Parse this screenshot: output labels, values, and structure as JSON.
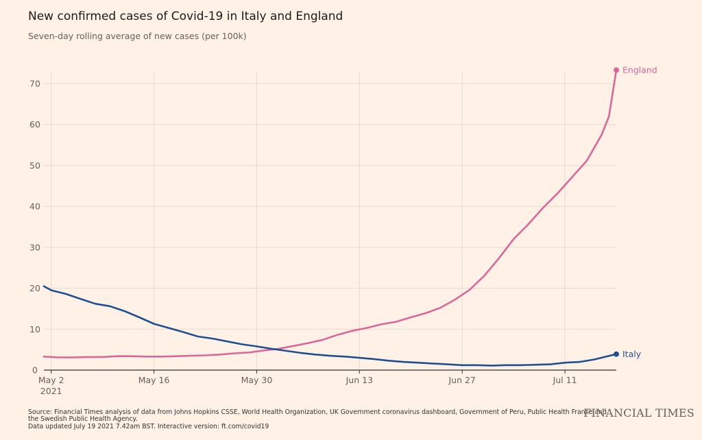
{
  "header": {
    "title": "New confirmed cases of Covid-19 in Italy and England",
    "subtitle": "Seven-day rolling average of new cases (per 100k)"
  },
  "footer": {
    "source_line1": "Source: Financial Times analysis of data from Johns Hopkins CSSE, World Health Organization, UK Government coronavirus dashboard, Government of Peru, Public Health France and",
    "source_line2": "the Swedish Public Health Agency.",
    "updated_line": "Data updated July 19 2021 7.42am BST. Interactive version: ft.com/covid19"
  },
  "brand": {
    "logo_text": "FINANCIAL TIMES"
  },
  "colors": {
    "background": "#fff1e5",
    "england": "#d9679a",
    "italy": "#1f4f8f",
    "grid": "#e6d9ce"
  },
  "chart_data": {
    "type": "line",
    "title": "New confirmed cases of Covid-19 in Italy and England",
    "subtitle": "Seven-day rolling average of new cases (per 100k)",
    "xlabel": "",
    "ylabel": "",
    "x_range": [
      "2021-05-01",
      "2021-07-18"
    ],
    "ylim": [
      0,
      73
    ],
    "y_ticks": [
      0,
      10,
      20,
      30,
      40,
      50,
      60,
      70
    ],
    "x_ticks": [
      {
        "date": "2021-05-02",
        "label": "May 2",
        "sublabel": "2021"
      },
      {
        "date": "2021-05-16",
        "label": "May 16"
      },
      {
        "date": "2021-05-30",
        "label": "May 30"
      },
      {
        "date": "2021-06-13",
        "label": "Jun 13"
      },
      {
        "date": "2021-06-27",
        "label": "Jun 27"
      },
      {
        "date": "2021-07-11",
        "label": "Jul 11"
      }
    ],
    "grid": true,
    "legend": "direct labels at line ends",
    "series": [
      {
        "name": "England",
        "color": "#d9679a",
        "points": [
          [
            "2021-05-01",
            3.3
          ],
          [
            "2021-05-03",
            3.1
          ],
          [
            "2021-05-05",
            3.1
          ],
          [
            "2021-05-07",
            3.2
          ],
          [
            "2021-05-09",
            3.2
          ],
          [
            "2021-05-11",
            3.4
          ],
          [
            "2021-05-13",
            3.4
          ],
          [
            "2021-05-15",
            3.3
          ],
          [
            "2021-05-17",
            3.3
          ],
          [
            "2021-05-19",
            3.4
          ],
          [
            "2021-05-21",
            3.5
          ],
          [
            "2021-05-23",
            3.6
          ],
          [
            "2021-05-25",
            3.8
          ],
          [
            "2021-05-27",
            4.1
          ],
          [
            "2021-05-29",
            4.3
          ],
          [
            "2021-05-31",
            4.8
          ],
          [
            "2021-06-02",
            5.2
          ],
          [
            "2021-06-04",
            5.9
          ],
          [
            "2021-06-06",
            6.6
          ],
          [
            "2021-06-08",
            7.4
          ],
          [
            "2021-06-10",
            8.6
          ],
          [
            "2021-06-12",
            9.6
          ],
          [
            "2021-06-14",
            10.3
          ],
          [
            "2021-06-16",
            11.2
          ],
          [
            "2021-06-18",
            11.8
          ],
          [
            "2021-06-20",
            12.9
          ],
          [
            "2021-06-22",
            13.9
          ],
          [
            "2021-06-24",
            15.2
          ],
          [
            "2021-06-26",
            17.2
          ],
          [
            "2021-06-28",
            19.6
          ],
          [
            "2021-06-30",
            23.0
          ],
          [
            "2021-07-02",
            27.3
          ],
          [
            "2021-07-04",
            32.0
          ],
          [
            "2021-07-06",
            35.6
          ],
          [
            "2021-07-08",
            39.6
          ],
          [
            "2021-07-10",
            43.2
          ],
          [
            "2021-07-12",
            47.2
          ],
          [
            "2021-07-14",
            51.2
          ],
          [
            "2021-07-16",
            57.5
          ],
          [
            "2021-07-17",
            62.0
          ],
          [
            "2021-07-18",
            73.3
          ]
        ]
      },
      {
        "name": "Italy",
        "color": "#1f4f8f",
        "points": [
          [
            "2021-05-01",
            20.5
          ],
          [
            "2021-05-02",
            19.5
          ],
          [
            "2021-05-04",
            18.6
          ],
          [
            "2021-05-06",
            17.4
          ],
          [
            "2021-05-08",
            16.2
          ],
          [
            "2021-05-10",
            15.6
          ],
          [
            "2021-05-12",
            14.4
          ],
          [
            "2021-05-14",
            12.9
          ],
          [
            "2021-05-16",
            11.3
          ],
          [
            "2021-05-18",
            10.3
          ],
          [
            "2021-05-20",
            9.3
          ],
          [
            "2021-05-22",
            8.2
          ],
          [
            "2021-05-24",
            7.7
          ],
          [
            "2021-05-26",
            7.0
          ],
          [
            "2021-05-28",
            6.3
          ],
          [
            "2021-05-30",
            5.8
          ],
          [
            "2021-06-01",
            5.2
          ],
          [
            "2021-06-03",
            4.7
          ],
          [
            "2021-06-05",
            4.2
          ],
          [
            "2021-06-07",
            3.8
          ],
          [
            "2021-06-09",
            3.5
          ],
          [
            "2021-06-11",
            3.3
          ],
          [
            "2021-06-13",
            3.0
          ],
          [
            "2021-06-15",
            2.7
          ],
          [
            "2021-06-17",
            2.3
          ],
          [
            "2021-06-19",
            2.0
          ],
          [
            "2021-06-21",
            1.8
          ],
          [
            "2021-06-23",
            1.6
          ],
          [
            "2021-06-25",
            1.4
          ],
          [
            "2021-06-27",
            1.2
          ],
          [
            "2021-06-29",
            1.2
          ],
          [
            "2021-07-01",
            1.1
          ],
          [
            "2021-07-03",
            1.2
          ],
          [
            "2021-07-05",
            1.2
          ],
          [
            "2021-07-07",
            1.3
          ],
          [
            "2021-07-09",
            1.4
          ],
          [
            "2021-07-11",
            1.8
          ],
          [
            "2021-07-13",
            2.0
          ],
          [
            "2021-07-15",
            2.6
          ],
          [
            "2021-07-18",
            3.9
          ]
        ]
      }
    ]
  }
}
